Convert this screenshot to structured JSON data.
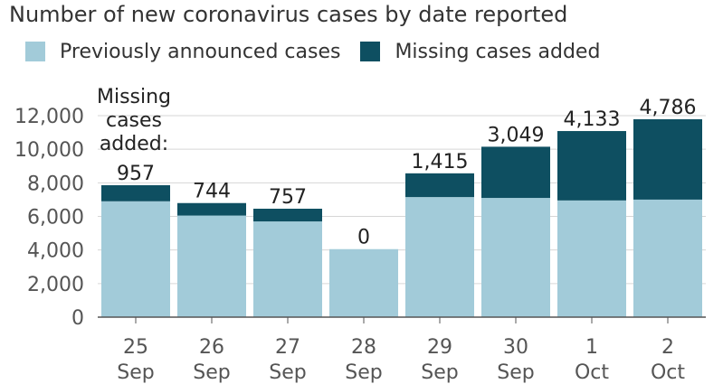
{
  "chart_data": {
    "type": "bar",
    "stacked": true,
    "title": "Number of new coronavirus cases by date reported",
    "categories": [
      [
        "25",
        "Sep"
      ],
      [
        "26",
        "Sep"
      ],
      [
        "27",
        "Sep"
      ],
      [
        "28",
        "Sep"
      ],
      [
        "29",
        "Sep"
      ],
      [
        "30",
        "Sep"
      ],
      [
        "1",
        "Oct"
      ],
      [
        "2",
        "Oct"
      ]
    ],
    "series": [
      {
        "name": "Previously announced cases",
        "color": "#a2cbd9",
        "values": [
          6900,
          6050,
          5700,
          4050,
          7150,
          7100,
          6950,
          7000
        ]
      },
      {
        "name": "Missing cases added",
        "color": "#0e4f61",
        "values": [
          957,
          744,
          757,
          0,
          1415,
          3049,
          4133,
          4786
        ]
      }
    ],
    "data_labels": [
      "957",
      "744",
      "757",
      "0",
      "1,415",
      "3,049",
      "4,133",
      "4,786"
    ],
    "annotation": [
      "Missing",
      "cases",
      "added:"
    ],
    "ylim": [
      0,
      12000
    ],
    "yticks": [
      0,
      2000,
      4000,
      6000,
      8000,
      10000,
      12000
    ],
    "ytick_labels": [
      "0",
      "2,000",
      "4,000",
      "6,000",
      "8,000",
      "10,000",
      "12,000"
    ],
    "grid": true,
    "legend_position": "top-left"
  }
}
